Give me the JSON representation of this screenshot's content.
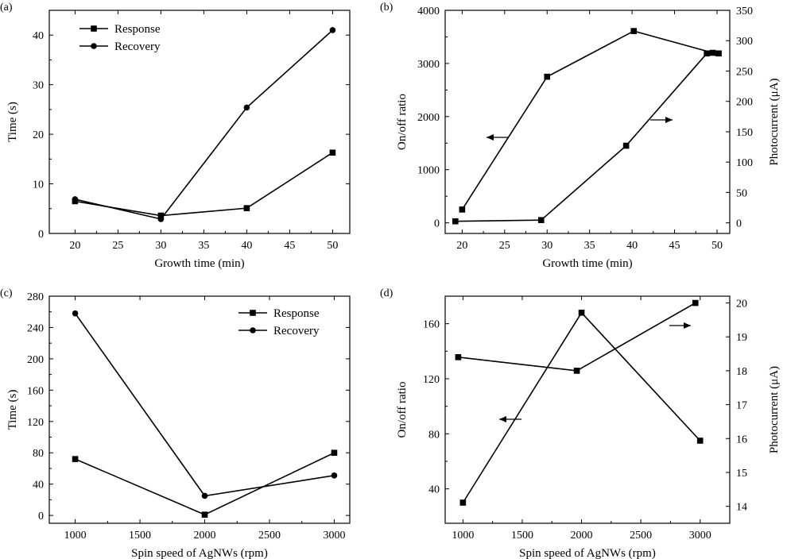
{
  "chart_data": [
    {
      "panel": "(a)",
      "type": "line",
      "xlabel": "Growth time (min)",
      "ylabel": "Time (s)",
      "xlim": [
        17,
        52
      ],
      "ylim": [
        0,
        45
      ],
      "xticks": [
        20,
        25,
        30,
        35,
        40,
        45,
        50
      ],
      "yticks": [
        0,
        10,
        20,
        30,
        40
      ],
      "legend": [
        "Response",
        "Recovery"
      ],
      "legend_position": "top-left",
      "series": [
        {
          "name": "Response",
          "marker": "square",
          "x": [
            20,
            30,
            40,
            50
          ],
          "y": [
            6.5,
            3.6,
            5.1,
            16.3
          ]
        },
        {
          "name": "Recovery",
          "marker": "circle",
          "x": [
            20,
            30,
            40,
            50
          ],
          "y": [
            6.9,
            2.9,
            25.4,
            41.0
          ]
        }
      ]
    },
    {
      "panel": "(b)",
      "type": "line",
      "xlabel": "Growth time (min)",
      "ylabel": "On/off ratio",
      "y2label": "Photocurrent (μA)",
      "xlim": [
        18,
        51.5
      ],
      "ylim": [
        -200,
        4000
      ],
      "y2lim": [
        -17.5,
        350
      ],
      "xticks": [
        20,
        25,
        30,
        35,
        40,
        45,
        50
      ],
      "yticks": [
        0,
        1000,
        2000,
        3000,
        4000
      ],
      "y2ticks": [
        0,
        50,
        100,
        150,
        200,
        250,
        300,
        350
      ],
      "series": [
        {
          "name": "",
          "axis": "left",
          "marker": "square",
          "x": [
            20,
            30,
            40.2,
            49.5
          ],
          "y": [
            250,
            2750,
            3610,
            3200
          ]
        },
        {
          "name": "",
          "axis": "right",
          "marker": "square",
          "x": [
            19.2,
            29.3,
            39.3,
            48.8,
            50.2
          ],
          "y": [
            2.5,
            4.5,
            127,
            279,
            279
          ]
        }
      ]
    },
    {
      "panel": "(c)",
      "type": "line",
      "xlabel": "Spin speed of AgNWs (rpm)",
      "ylabel": "Time (s)",
      "xlim": [
        800,
        3120
      ],
      "ylim": [
        -10,
        280
      ],
      "xticks": [
        1000,
        1500,
        2000,
        2500,
        3000
      ],
      "yticks": [
        0,
        40,
        80,
        120,
        160,
        200,
        240,
        280
      ],
      "legend": [
        "Response",
        "Recovery"
      ],
      "legend_position": "top-right",
      "series": [
        {
          "name": "Response",
          "marker": "square",
          "x": [
            1000,
            2000,
            3000
          ],
          "y": [
            72,
            1,
            80
          ]
        },
        {
          "name": "Recovery",
          "marker": "circle",
          "x": [
            1000,
            2000,
            3000
          ],
          "y": [
            258,
            25,
            51
          ]
        }
      ]
    },
    {
      "panel": "(d)",
      "type": "line",
      "xlabel": "Spin speed of AgNWs (rpm)",
      "ylabel": "On/off ratio",
      "y2label": "Photocurrent (μA)",
      "xlim": [
        850,
        3250
      ],
      "ylim": [
        15,
        180
      ],
      "y2lim": [
        13.5,
        20.2
      ],
      "xticks": [
        1000,
        1500,
        2000,
        2500,
        3000
      ],
      "yticks": [
        40,
        80,
        120,
        160
      ],
      "y2ticks": [
        14,
        15,
        16,
        17,
        18,
        19,
        20
      ],
      "series": [
        {
          "name": "",
          "axis": "left",
          "marker": "square",
          "x": [
            1000,
            2000,
            3000
          ],
          "y": [
            30,
            168,
            75
          ]
        },
        {
          "name": "",
          "axis": "right",
          "marker": "square",
          "x": [
            960,
            1960,
            2960
          ],
          "y": [
            18.4,
            18.0,
            20.0
          ]
        }
      ]
    }
  ]
}
